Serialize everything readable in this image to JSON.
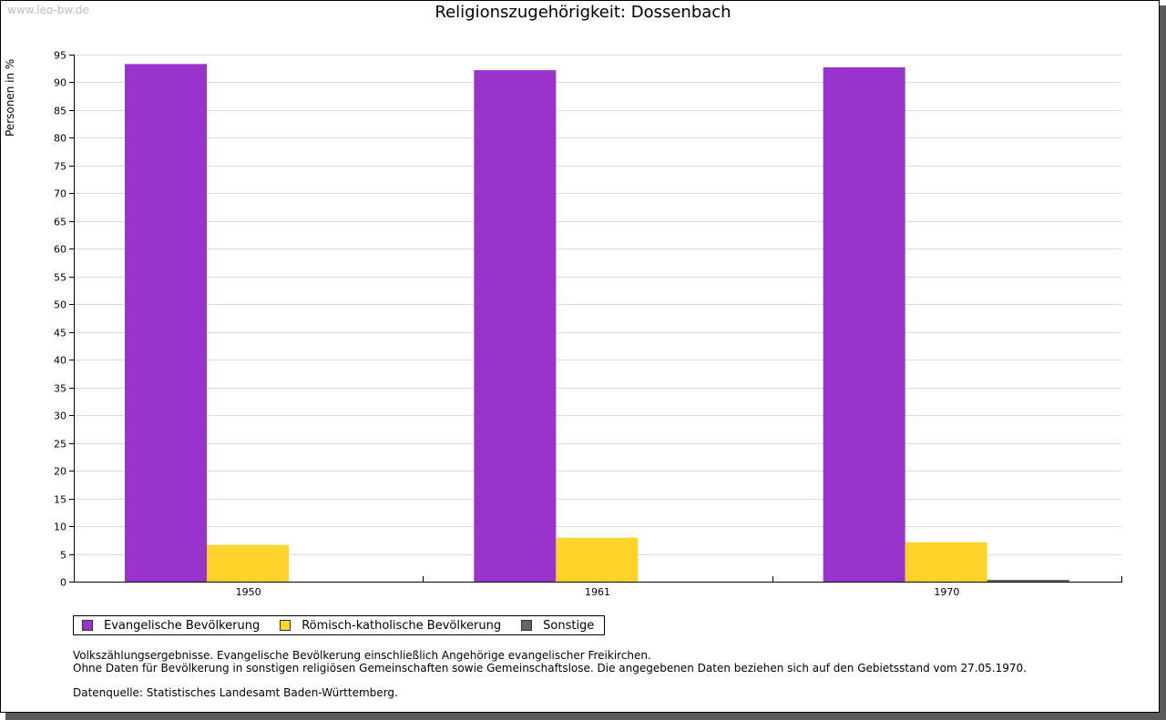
{
  "watermark": "www.leo-bw.de",
  "chart_data": {
    "type": "bar",
    "title": "Religionszugehörigkeit: Dossenbach",
    "xlabel": "",
    "ylabel": "Personen in %",
    "categories": [
      "1950",
      "1961",
      "1970"
    ],
    "series": [
      {
        "name": "Evangelische Bevölkerung",
        "color": "#9933cc",
        "values": [
          93.3,
          92.2,
          92.7
        ]
      },
      {
        "name": "Römisch-katholische Bevölkerung",
        "color": "#ffd42a",
        "values": [
          6.6,
          7.9,
          7.1
        ]
      },
      {
        "name": "Sonstige",
        "color": "#666666",
        "values": [
          null,
          null,
          0.3
        ]
      }
    ],
    "ylim": [
      0,
      95
    ],
    "yticks": [
      0,
      5,
      10,
      15,
      20,
      25,
      30,
      35,
      40,
      45,
      50,
      55,
      60,
      65,
      70,
      75,
      80,
      85,
      90,
      95
    ],
    "grid": true,
    "legend_position": "bottom-left"
  },
  "notes": {
    "line1": "Volkszählungsergebnisse. Evangelische Bevölkerung einschließlich Angehörige evangelischer Freikirchen.",
    "line2": "Ohne Daten für Bevölkerung in sonstigen religiösen Gemeinschaften sowie Gemeinschaftslose. Die angegebenen Daten beziehen sich auf den Gebietsstand vom 27.05.1970.",
    "source": "Datenquelle: Statistisches Landesamt Baden-Württemberg."
  }
}
